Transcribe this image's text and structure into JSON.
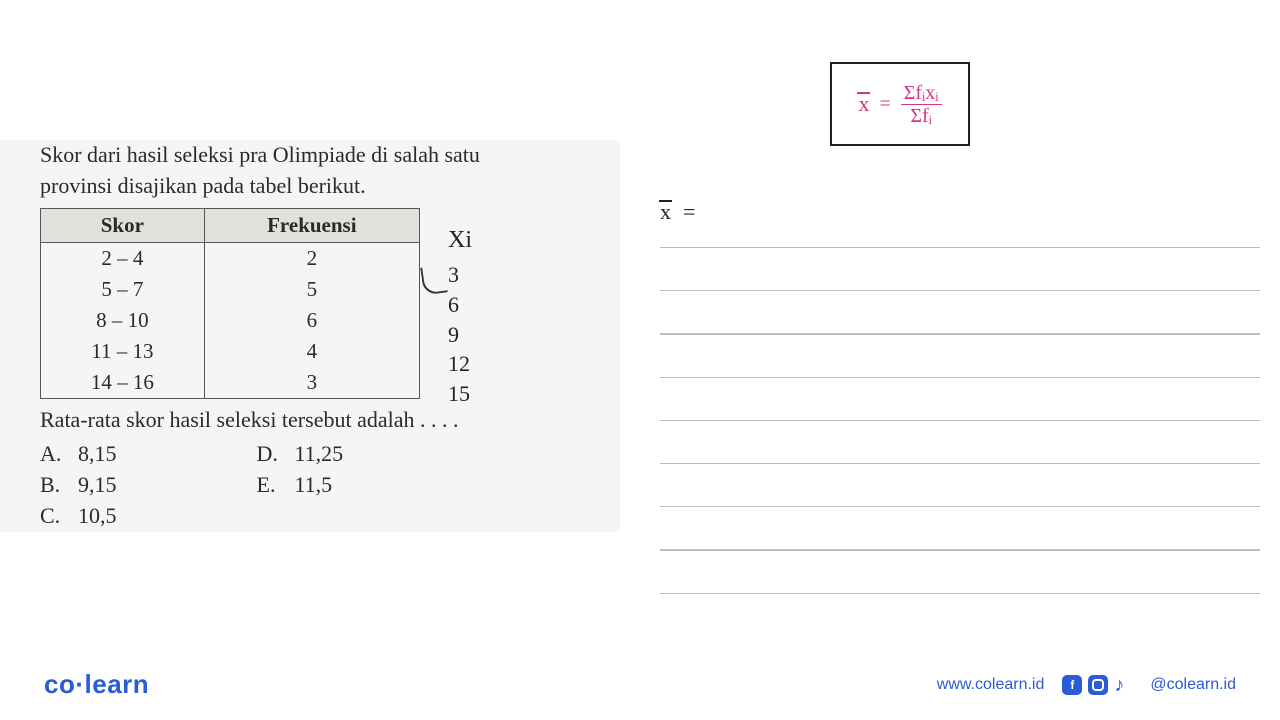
{
  "question": {
    "text_line1": "Skor dari hasil seleksi pra Olimpiade di salah satu",
    "text_line2": "provinsi disajikan pada tabel berikut.",
    "result_text": "Rata-rata skor hasil seleksi tersebut adalah . . . ."
  },
  "table": {
    "type": "table",
    "columns": [
      "Skor",
      "Frekuensi"
    ],
    "rows": [
      [
        "2 – 4",
        "2"
      ],
      [
        "5 – 7",
        "5"
      ],
      [
        "8 – 10",
        "6"
      ],
      [
        "11 – 13",
        "4"
      ],
      [
        "14 – 16",
        "3"
      ]
    ],
    "header_bg": "#e0e0dc",
    "border_color": "#555555",
    "font_size": 21
  },
  "xi": {
    "header": "Xi",
    "values": [
      "3",
      "6",
      "9",
      "12",
      "15"
    ],
    "color": "#222222",
    "font_family": "handwriting"
  },
  "options": {
    "A": "8,15",
    "B": "9,15",
    "C": "10,5",
    "D": "11,25",
    "E": "11,5"
  },
  "formula": {
    "lhs": "x",
    "equals": "=",
    "numerator": "Σfᵢxᵢ",
    "denominator": "Σfᵢ",
    "color": "#d63384",
    "box_border": "#222222"
  },
  "work": {
    "xbar": "x",
    "equals": "="
  },
  "lines": {
    "count": 9,
    "color": "#bdbdbd",
    "spacing": 42
  },
  "footer": {
    "logo_co": "co",
    "logo_dot": "·",
    "logo_learn": "learn",
    "url": "www.colearn.id",
    "handle": "@colearn.id",
    "brand_color": "#2a5cd6"
  }
}
